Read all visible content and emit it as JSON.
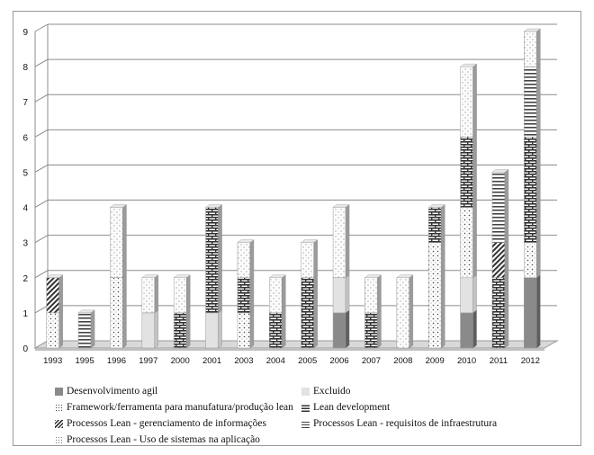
{
  "chart_data": {
    "type": "bar",
    "stacked": true,
    "style": "3d",
    "categories": [
      "1993",
      "1995",
      "1996",
      "1997",
      "2000",
      "2001",
      "2003",
      "2004",
      "2005",
      "2006",
      "2007",
      "2008",
      "2009",
      "2010",
      "2011",
      "2012"
    ],
    "y_ticks": [
      "0",
      "1",
      "2",
      "3",
      "4",
      "5",
      "6",
      "7",
      "8",
      "9"
    ],
    "ylim": [
      0,
      9
    ],
    "grid": true,
    "legend_position": "bottom",
    "series": [
      {
        "name": "Desenvolvimento agil",
        "pattern": "solid-dark",
        "color": "#8a8a8a",
        "values": [
          0,
          0,
          0,
          0,
          0,
          0,
          0,
          0,
          0,
          1,
          0,
          0,
          0,
          1,
          0,
          2
        ]
      },
      {
        "name": "Excluido",
        "pattern": "solid-light",
        "color": "#e2e2e2",
        "values": [
          0,
          0,
          0,
          1,
          0,
          1,
          0,
          0,
          0,
          1,
          0,
          0,
          0,
          1,
          0,
          0
        ]
      },
      {
        "name": "Framework/ferramenta para manufatura/produção lean",
        "pattern": "dots",
        "color": "#ffffff",
        "values": [
          1,
          0,
          2,
          0,
          0,
          0,
          1,
          0,
          0,
          0,
          0,
          0,
          3,
          2,
          0,
          1
        ]
      },
      {
        "name": "Lean development",
        "pattern": "brick",
        "color": "#ffffff",
        "values": [
          0,
          0,
          0,
          0,
          1,
          3,
          1,
          1,
          2,
          0,
          1,
          0,
          1,
          2,
          2,
          3
        ]
      },
      {
        "name": "Processos Lean - gerenciamento de informações",
        "pattern": "diagonal",
        "color": "#ffffff",
        "values": [
          1,
          0,
          0,
          0,
          0,
          0,
          0,
          0,
          0,
          0,
          0,
          0,
          0,
          0,
          1,
          0
        ]
      },
      {
        "name": "Processos Lean - requisitos de infraestrutura",
        "pattern": "horizontal",
        "color": "#ffffff",
        "values": [
          0,
          1,
          0,
          0,
          0,
          0,
          0,
          0,
          0,
          0,
          0,
          0,
          0,
          0,
          2,
          2
        ]
      },
      {
        "name": "Processos Lean - Uso de sistemas na aplicação",
        "pattern": "crosshatch-dots",
        "color": "#ffffff",
        "values": [
          0,
          0,
          2,
          1,
          1,
          0,
          1,
          1,
          1,
          2,
          1,
          2,
          0,
          2,
          0,
          1
        ]
      }
    ]
  }
}
